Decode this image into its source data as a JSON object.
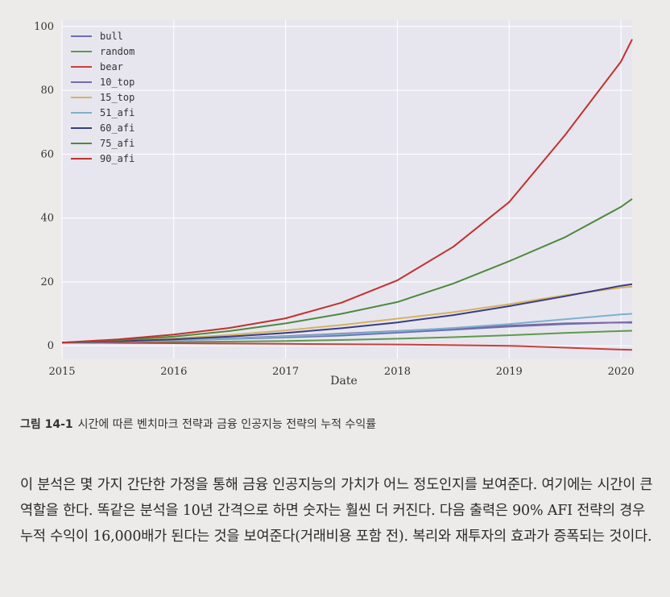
{
  "chart_data": {
    "type": "line",
    "xlabel": "Date",
    "x_ticks": [
      "2015",
      "2016",
      "2017",
      "2018",
      "2019",
      "2020"
    ],
    "y_ticks": [
      0,
      20,
      40,
      60,
      80,
      100
    ],
    "xlim": [
      2015.0,
      2020.1
    ],
    "ylim": [
      -4,
      102
    ],
    "grid": true,
    "legend_position": "top-left",
    "x": [
      2015.0,
      2015.5,
      2016.0,
      2016.5,
      2017.0,
      2017.5,
      2018.0,
      2018.5,
      2019.0,
      2019.5,
      2020.0,
      2020.1
    ],
    "series": [
      {
        "name": "bull",
        "color": "#6b6fb0",
        "values": [
          1,
          1.3,
          1.7,
          2.1,
          2.6,
          3.2,
          4.1,
          5,
          6,
          6.8,
          7.3,
          7.4
        ]
      },
      {
        "name": "random",
        "color": "#5f9a4a",
        "values": [
          1,
          1.1,
          1.2,
          1.3,
          1.5,
          1.8,
          2.2,
          2.7,
          3.3,
          4,
          4.6,
          4.7
        ]
      },
      {
        "name": "bear",
        "color": "#c7403c",
        "values": [
          1,
          0.9,
          0.8,
          0.7,
          0.6,
          0.5,
          0.4,
          0.2,
          0,
          -0.6,
          -1.2,
          -1.3
        ]
      },
      {
        "name": "10_top",
        "color": "#7a6aa8",
        "values": [
          1,
          1.3,
          1.8,
          2.3,
          3,
          3.8,
          4.6,
          5.5,
          6.3,
          7,
          7.3,
          7.2
        ]
      },
      {
        "name": "15_top",
        "color": "#d4b262",
        "values": [
          1,
          1.5,
          2.3,
          3.4,
          4.8,
          6.5,
          8.5,
          10.5,
          13,
          15.8,
          18.2,
          18.5
        ]
      },
      {
        "name": "51_afi",
        "color": "#7fb0cc",
        "values": [
          1,
          1.3,
          1.7,
          2.2,
          2.9,
          3.6,
          4.5,
          5.6,
          6.8,
          8.3,
          9.8,
          10
        ]
      },
      {
        "name": "60_afi",
        "color": "#3a3d80",
        "values": [
          1,
          1.4,
          2,
          2.9,
          4,
          5.5,
          7.3,
          9.6,
          12.4,
          15.5,
          18.8,
          19.3
        ]
      },
      {
        "name": "75_afi",
        "color": "#4e8a3c",
        "values": [
          1,
          1.7,
          2.9,
          4.6,
          7,
          10,
          13.7,
          19.5,
          26.5,
          34,
          43.5,
          46
        ]
      },
      {
        "name": "90_afi",
        "color": "#c3302f",
        "values": [
          1,
          2,
          3.5,
          5.6,
          8.6,
          13.5,
          20.5,
          31,
          45,
          66,
          89,
          96
        ]
      }
    ]
  },
  "caption": {
    "figure_number": "그림 14-1",
    "text": "시간에 따른 벤치마크 전략과 금융 인공지능 전략의 누적 수익률"
  },
  "body_text": "이 분석은 몇 가지 간단한 가정을 통해 금융 인공지능의 가치가 어느 정도인지를 보여준다. 여기에는 시간이 큰 역할을 한다. 똑같은 분석을 10년 간격으로 하면 숫자는 훨씬 더 커진다. 다음 출력은 90% AFI 전략의 경우 누적 수익이 16,000배가 된다는 것을 보여준다(거래비용 포함 전). 복리와 재투자의 효과가 증폭되는 것이다."
}
